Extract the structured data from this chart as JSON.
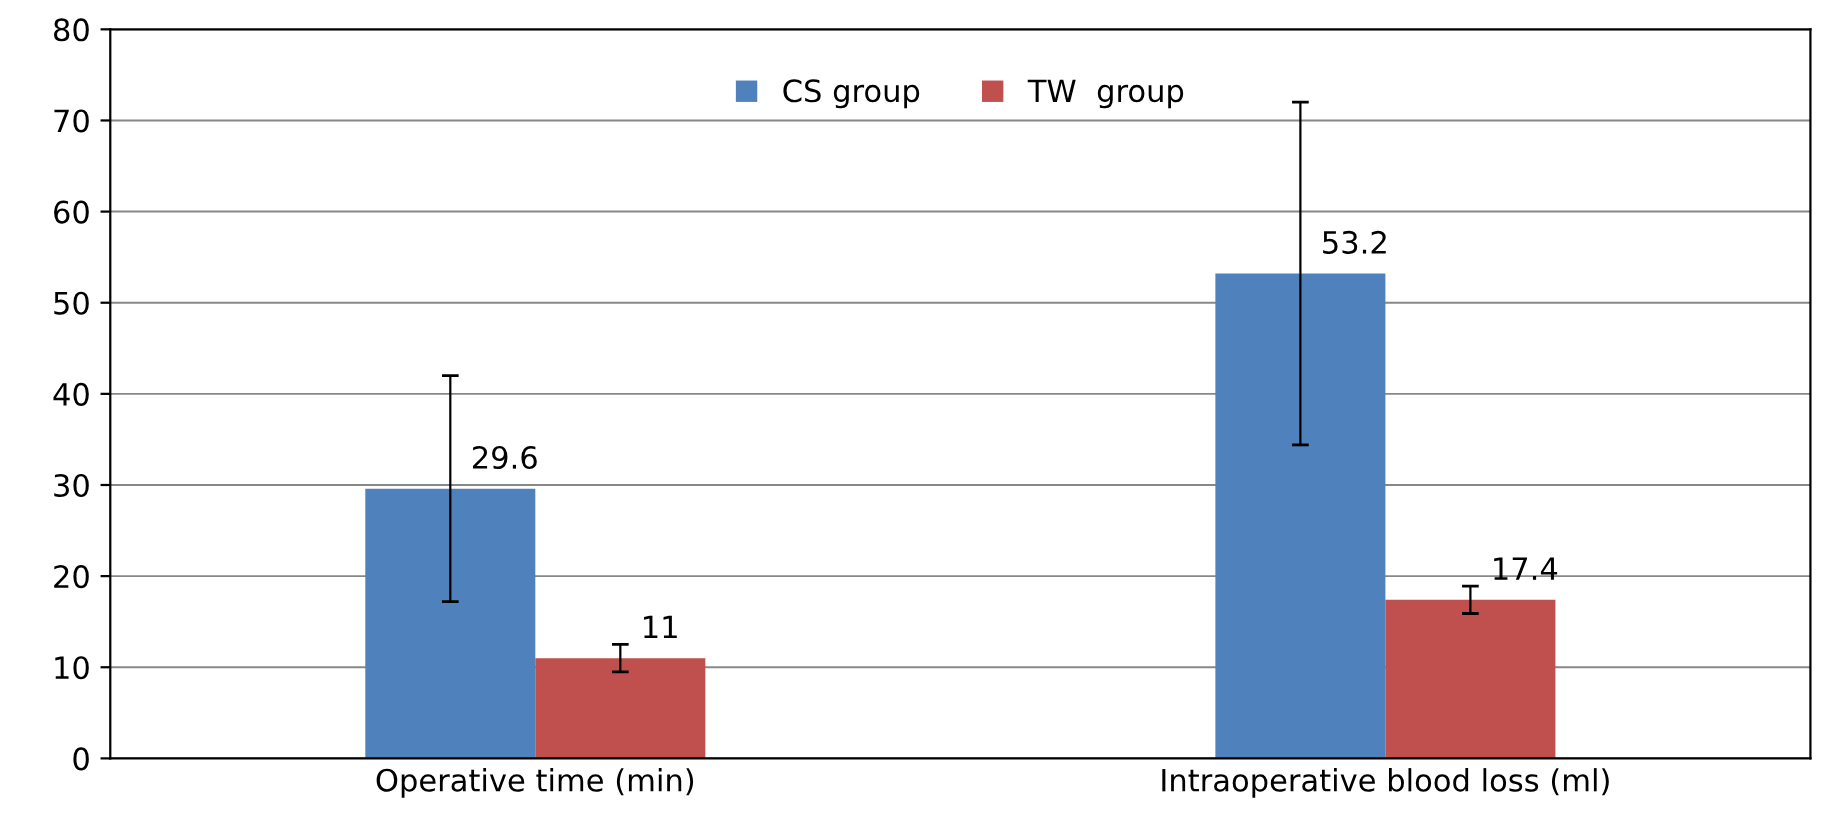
{
  "chart_data": {
    "type": "bar",
    "categories": [
      "Operative time (min)",
      "Intraoperative blood loss (ml)"
    ],
    "series": [
      {
        "name": "CS group",
        "color": "#4f81bd",
        "values": [
          29.6,
          53.2
        ],
        "errors": [
          12.4,
          18.8
        ]
      },
      {
        "name": "TW  group",
        "color": "#c0504d",
        "values": [
          11,
          17.4
        ],
        "errors": [
          1.5,
          1.5
        ]
      }
    ],
    "ylim": [
      0,
      80
    ],
    "yticks": [
      0,
      10,
      20,
      30,
      40,
      50,
      60,
      70,
      80
    ],
    "grid": "y",
    "legend": "top",
    "data_labels": true
  }
}
